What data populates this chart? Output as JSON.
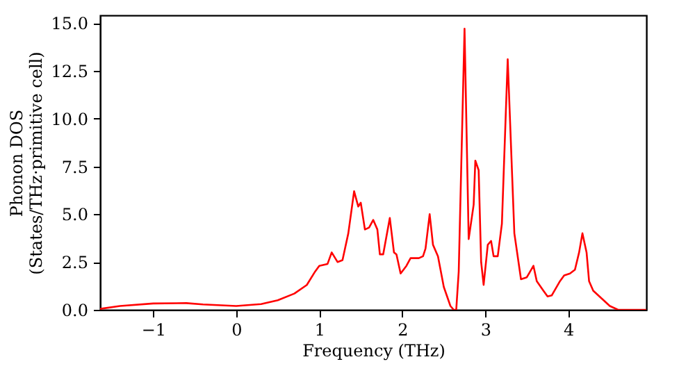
{
  "chart_data": {
    "type": "line",
    "xlabel": "Frequency (THz)",
    "ylabel": "Phonon DOS\n(States/THz·primitive cell)",
    "x": [
      -1.64,
      -1.4,
      -1.0,
      -0.6,
      -0.4,
      0,
      0.3,
      0.5,
      0.7,
      0.85,
      0.95,
      1.0,
      1.1,
      1.15,
      1.22,
      1.28,
      1.35,
      1.42,
      1.47,
      1.5,
      1.55,
      1.6,
      1.65,
      1.7,
      1.73,
      1.77,
      1.85,
      1.9,
      1.93,
      1.98,
      2.05,
      2.1,
      2.2,
      2.25,
      2.28,
      2.33,
      2.37,
      2.43,
      2.5,
      2.58,
      2.62,
      2.65,
      2.68,
      2.75,
      2.8,
      2.86,
      2.88,
      2.92,
      2.95,
      2.98,
      3.03,
      3.07,
      3.1,
      3.15,
      3.2,
      3.27,
      3.35,
      3.43,
      3.5,
      3.58,
      3.62,
      3.7,
      3.75,
      3.8,
      3.9,
      3.95,
      4.02,
      4.08,
      4.13,
      4.17,
      4.22,
      4.25,
      4.3,
      4.4,
      4.5,
      4.6,
      4.94
    ],
    "series": [
      {
        "color": "#ff0000",
        "values": [
          0.05,
          0.2,
          0.33,
          0.35,
          0.28,
          0.2,
          0.3,
          0.5,
          0.85,
          1.3,
          2.0,
          2.3,
          2.4,
          3.0,
          2.5,
          2.6,
          4.0,
          6.2,
          5.4,
          5.6,
          4.2,
          4.3,
          4.7,
          4.2,
          2.9,
          2.9,
          4.8,
          3.0,
          2.9,
          1.9,
          2.3,
          2.7,
          2.7,
          2.8,
          3.2,
          5.0,
          3.4,
          2.8,
          1.2,
          0.2,
          0.0,
          0.0,
          2.0,
          14.7,
          3.7,
          5.5,
          7.8,
          7.3,
          2.5,
          1.3,
          3.4,
          3.6,
          2.8,
          2.8,
          4.5,
          13.1,
          4.0,
          1.6,
          1.7,
          2.3,
          1.5,
          1.0,
          0.7,
          0.75,
          1.5,
          1.8,
          1.9,
          2.1,
          3.0,
          4.0,
          3.0,
          1.5,
          1.0,
          0.6,
          0.2,
          0.0,
          0.0
        ]
      }
    ],
    "xlim": [
      -1.64,
      4.94
    ],
    "ylim": [
      0,
      15.4
    ],
    "xticks": [
      {
        "value": -1,
        "label": "−1"
      },
      0,
      1,
      2,
      3,
      4
    ],
    "yticks": [
      {
        "value": 0,
        "label": "0.0"
      },
      2.5,
      {
        "value": 5,
        "label": "5.0"
      },
      7.5,
      {
        "value": 10,
        "label": "10.0"
      },
      12.5,
      {
        "value": 15,
        "label": "15.0"
      }
    ],
    "grid": false,
    "line_style": "solid",
    "marker": "none"
  }
}
